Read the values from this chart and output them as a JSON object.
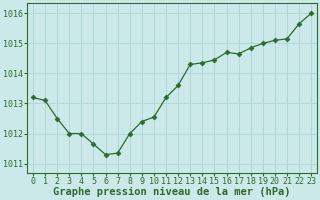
{
  "x": [
    0,
    1,
    2,
    3,
    4,
    5,
    6,
    7,
    8,
    9,
    10,
    11,
    12,
    13,
    14,
    15,
    16,
    17,
    18,
    19,
    20,
    21,
    22,
    23
  ],
  "y": [
    1013.2,
    1013.1,
    1012.5,
    1012.0,
    1012.0,
    1011.65,
    1011.3,
    1011.35,
    1012.0,
    1012.4,
    1012.55,
    1013.2,
    1013.6,
    1014.3,
    1014.35,
    1014.45,
    1014.7,
    1014.65,
    1014.85,
    1015.0,
    1015.1,
    1015.15,
    1015.65,
    1016.0
  ],
  "line_color": "#2d6a2d",
  "marker": "D",
  "marker_size": 2.5,
  "bg_color": "#cce9e9",
  "grid_color": "#b0d8d8",
  "xlabel": "Graphe pression niveau de la mer (hPa)",
  "xlabel_color": "#2d6a2d",
  "xlabel_fontsize": 7.5,
  "tick_color": "#2d6a2d",
  "tick_fontsize": 6,
  "ylim": [
    1010.7,
    1016.35
  ],
  "yticks": [
    1011,
    1012,
    1013,
    1014,
    1015,
    1016
  ],
  "xticks": [
    0,
    1,
    2,
    3,
    4,
    5,
    6,
    7,
    8,
    9,
    10,
    11,
    12,
    13,
    14,
    15,
    16,
    17,
    18,
    19,
    20,
    21,
    22,
    23
  ]
}
